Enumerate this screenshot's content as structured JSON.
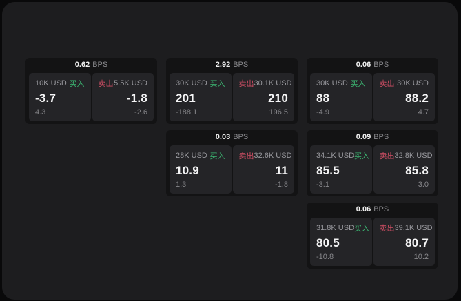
{
  "theme": {
    "outer_bg": "#09090a",
    "panel_bg": "#1d1d1f",
    "card_bg": "#131314",
    "tile_bg": "#242427",
    "text_primary": "#f5f5f6",
    "text_secondary": "#98989d",
    "buy_color": "#3cb873",
    "sell_color": "#cf4e64"
  },
  "labels": {
    "bps_unit": "BPS",
    "buy": "买入",
    "sell": "卖出"
  },
  "cards": [
    {
      "bps": "0.62",
      "buy": {
        "amount": "10K USD",
        "value": "-3.7",
        "delta": "4.3"
      },
      "sell": {
        "amount": "5.5K USD",
        "value": "-1.8",
        "delta": "-2.6"
      }
    },
    {
      "bps": "2.92",
      "buy": {
        "amount": "30K USD",
        "value": "201",
        "delta": "-188.1"
      },
      "sell": {
        "amount": "30.1K USD",
        "value": "210",
        "delta": "196.5"
      }
    },
    {
      "bps": "0.06",
      "buy": {
        "amount": "30K USD",
        "value": "88",
        "delta": "-4.9"
      },
      "sell": {
        "amount": "30K USD",
        "value": "88.2",
        "delta": "4.7"
      }
    },
    {
      "bps": "0.03",
      "buy": {
        "amount": "28K USD",
        "value": "10.9",
        "delta": "1.3"
      },
      "sell": {
        "amount": "32.6K USD",
        "value": "11",
        "delta": "-1.8"
      }
    },
    {
      "bps": "0.09",
      "buy": {
        "amount": "34.1K USD",
        "value": "85.5",
        "delta": "-3.1"
      },
      "sell": {
        "amount": "32.8K USD",
        "value": "85.8",
        "delta": "3.0"
      }
    },
    {
      "bps": "0.06",
      "buy": {
        "amount": "31.8K USD",
        "value": "80.5",
        "delta": "-10.8"
      },
      "sell": {
        "amount": "39.1K USD",
        "value": "80.7",
        "delta": "10.2"
      }
    }
  ]
}
